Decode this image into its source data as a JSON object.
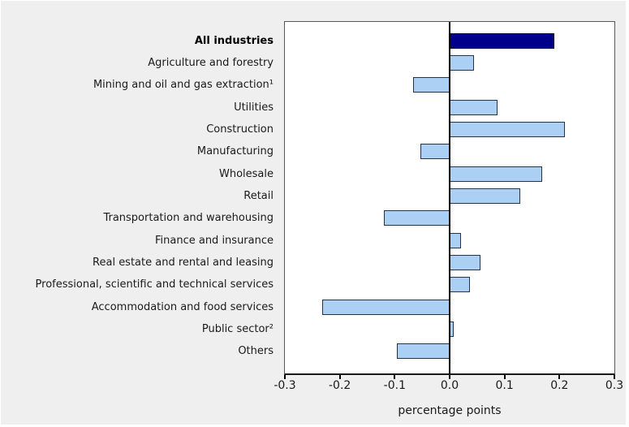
{
  "chart_data": {
    "type": "bar",
    "orientation": "horizontal",
    "title": "",
    "xlabel": "percentage points",
    "ylabel": "",
    "xlim": [
      -0.3,
      0.3
    ],
    "grid": false,
    "legend": false,
    "categories": [
      "All industries",
      "Agriculture and forestry",
      "Mining and oil and gas extraction¹",
      "Utilities",
      "Construction",
      "Manufacturing",
      "Wholesale",
      "Retail",
      "Transportation and warehousing",
      "Finance and insurance",
      "Real estate and rental and leasing",
      "Professional, scientific and technical services",
      "Accommodation and food services",
      "Public sector²",
      "Others"
    ],
    "values": [
      0.19,
      0.045,
      -0.067,
      0.087,
      0.21,
      -0.053,
      0.168,
      0.129,
      -0.12,
      0.021,
      0.056,
      0.037,
      -0.232,
      0.007,
      -0.096
    ],
    "emphasized_category": "All industries",
    "xticks": [
      {
        "label": "-0.3",
        "value": -0.3
      },
      {
        "label": "-0.2",
        "value": -0.2
      },
      {
        "label": "-0.1",
        "value": -0.1
      },
      {
        "label": "0.0",
        "value": 0.0
      },
      {
        "label": "0.1",
        "value": 0.1
      },
      {
        "label": "0.2",
        "value": 0.2
      },
      {
        "label": "0.3",
        "value": 0.3
      }
    ],
    "colors": {
      "emphasis_bar_fill": "#00008b",
      "emphasis_bar_border": "#000028",
      "bar_fill": "#abd0f3",
      "bar_border": "#24344f",
      "zero_line": "#000000",
      "plot_border": "#595959",
      "plot_bg": "#ffffff",
      "page_bg": "#efefef",
      "text": "#1a1a1a"
    }
  }
}
